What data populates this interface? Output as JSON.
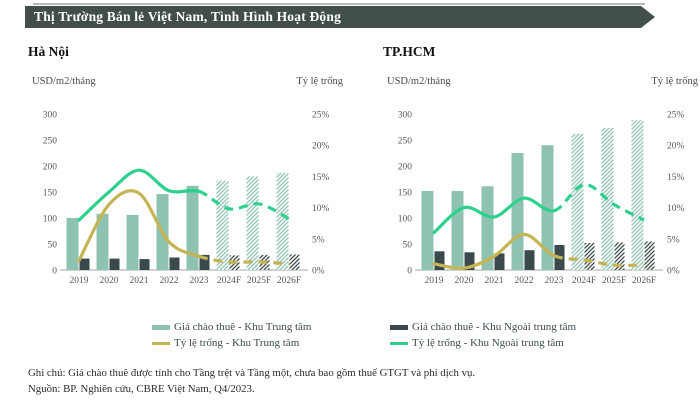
{
  "banner": {
    "title": "Thị Trường Bán lẻ Việt Nam, Tình Hình Hoạt Động",
    "bg": "#414e4b"
  },
  "colors": {
    "banner_bg": "#414e4b",
    "bar_cbd": "#8fc3b1",
    "bar_noncbd": "#3a4a4c",
    "line_cbd": "#c5b454",
    "line_noncbd": "#2ed08e",
    "axis_text": "#595959"
  },
  "legend": [
    {
      "label": "Giá chào thuê - Khu Trung tâm",
      "swatch": "bar",
      "color": "#8fc3b1"
    },
    {
      "label": "Giá chào thuê - Khu Ngoài trung tâm",
      "swatch": "bar",
      "color": "#3a4a4c"
    },
    {
      "label": "Tỷ lệ trống - Khu Trung tâm",
      "swatch": "line",
      "color": "#c5b454"
    },
    {
      "label": "Tỷ lệ trống - Khu Ngoài trung tâm",
      "swatch": "line",
      "color": "#2ed08e"
    }
  ],
  "notes": {
    "line1": "Ghi chú: Giá chào thuê được tính cho Tầng trệt và Tầng một, chưa bao gồm thuế GTGT và phí dịch vụ.",
    "line2": "Nguồn: BP. Nghiên cứu, CBRE Việt Nam, Q4/2023."
  },
  "chart_data": [
    {
      "type": "bar+line combo",
      "title": "Hà Nội",
      "categories": [
        "2019",
        "2020",
        "2021",
        "2022",
        "2023",
        "2024F",
        "2025F",
        "2026F"
      ],
      "forecast_start_index": 5,
      "left_axis": {
        "label": "USD/m2/tháng",
        "max": 300,
        "ticks": [
          0,
          50,
          100,
          150,
          200,
          250,
          300
        ]
      },
      "right_axis": {
        "label": "Tỷ lệ trống",
        "max": 25,
        "ticks": [
          0,
          5,
          10,
          15,
          20,
          25
        ],
        "tick_suffix": "%"
      },
      "bars": [
        {
          "name": "Giá chào thuê - Khu Trung tâm",
          "axis": "left",
          "color": "#8fc3b1",
          "values": [
            100,
            108,
            106,
            146,
            162,
            172,
            180,
            187
          ]
        },
        {
          "name": "Giá chào thuê - Khu Ngoài trung tâm",
          "axis": "left",
          "color": "#3a4a4c",
          "values": [
            22,
            22,
            21,
            24,
            29,
            28,
            29,
            30
          ]
        }
      ],
      "lines": [
        {
          "name": "Tỷ lệ trống - Khu Trung tâm",
          "axis": "right",
          "color": "#c5b454",
          "values": [
            1.5,
            10.5,
            12.3,
            4.5,
            2.2,
            1.3,
            1.3,
            1.0
          ]
        },
        {
          "name": "Tỷ lệ trống - Khu Ngoài trung tâm",
          "axis": "right",
          "color": "#2ed08e",
          "values": [
            8,
            12.5,
            16,
            12.7,
            12.6,
            9.8,
            10.6,
            8.2
          ]
        }
      ]
    },
    {
      "type": "bar+line combo",
      "title": "TP.HCM",
      "categories": [
        "2019",
        "2020",
        "2021",
        "2022",
        "2023",
        "2024F",
        "2025F",
        "2026F"
      ],
      "forecast_start_index": 5,
      "left_axis": {
        "label": "USD/m2/tháng",
        "max": 300,
        "ticks": [
          0,
          50,
          100,
          150,
          200,
          250,
          300
        ]
      },
      "right_axis": {
        "label": "Tỷ lệ trống",
        "max": 25,
        "ticks": [
          0,
          5,
          10,
          15,
          20,
          25
        ],
        "tick_suffix": "%"
      },
      "bars": [
        {
          "name": "Giá chào thuê - Khu Trung tâm",
          "axis": "left",
          "color": "#8fc3b1",
          "values": [
            152,
            152,
            161,
            225,
            240,
            262,
            273,
            288
          ]
        },
        {
          "name": "Giá chào thuê - Khu Ngoài trung tâm",
          "axis": "left",
          "color": "#3a4a4c",
          "values": [
            36,
            34,
            32,
            38,
            48,
            52,
            53,
            55
          ]
        }
      ],
      "lines": [
        {
          "name": "Tỷ lệ trống - Khu Trung tâm",
          "axis": "right",
          "color": "#c5b454",
          "values": [
            1.0,
            0.3,
            2.2,
            5.7,
            2.3,
            1.6,
            0.8,
            0.8
          ]
        },
        {
          "name": "Tỷ lệ trống - Khu Ngoài trung tâm",
          "axis": "right",
          "color": "#2ed08e",
          "values": [
            6,
            10,
            8.5,
            11.5,
            9.5,
            13.7,
            10.5,
            8
          ]
        }
      ]
    }
  ]
}
